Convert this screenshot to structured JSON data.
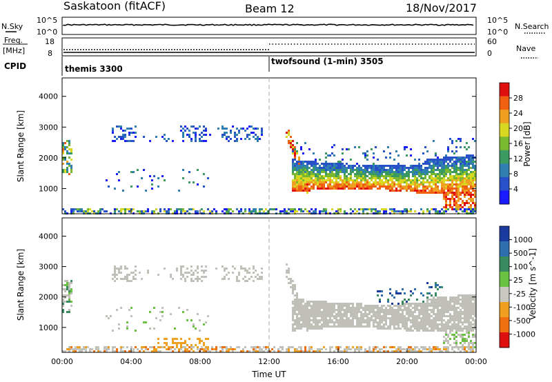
{
  "header": {
    "station": "Saskatoon (fitACF)",
    "beam": "Beam 12",
    "date": "18/Nov/2017"
  },
  "top_panel": {
    "left_label": "N.Sky",
    "right_label": "N.Search",
    "left_ticks": [
      "10^5",
      "10^0"
    ],
    "right_ticks": [
      "10^5",
      "10^0"
    ]
  },
  "freq_panel": {
    "left_label_1": "Freq.",
    "left_label_2": "[MHz]",
    "right_label": "Nave",
    "left_ticks": [
      "18",
      "8"
    ],
    "right_ticks": [
      "60",
      "0"
    ]
  },
  "cpid": {
    "label": "CPID",
    "segments": [
      {
        "name": "themis 3300",
        "start_hour": 0,
        "end_hour": 12
      },
      {
        "name": "twofsound (1-min) 3505",
        "start_hour": 12,
        "end_hour": 24
      }
    ]
  },
  "chart_data": [
    {
      "type": "heatmap",
      "title": "",
      "quantity": "Power",
      "xlabel": "Time UT",
      "ylabel": "Slant Range [km]",
      "colorbar_label": "Power [dB]",
      "xlim": [
        "00:00",
        "24:00"
      ],
      "ylim": [
        180,
        4600
      ],
      "yticks": [
        1000,
        2000,
        3000,
        4000
      ],
      "colorbar_ticks": [
        4,
        8,
        12,
        16,
        20,
        24,
        28
      ],
      "colorbar_range": [
        0,
        32
      ],
      "colors": [
        "#1a1aff",
        "#2850c8",
        "#2f7fb0",
        "#3a9a60",
        "#7ab830",
        "#d8d820",
        "#f0a020",
        "#f06010",
        "#e01010"
      ],
      "regions": [
        {
          "t": [
            2.6,
            11.5
          ],
          "r": [
            2650,
            3050
          ],
          "level": 6,
          "desc": "sparse echoes"
        },
        {
          "t": [
            13.3,
            24
          ],
          "r": [
            900,
            2000
          ],
          "level": 22,
          "desc": "main band"
        },
        {
          "t": [
            13.3,
            24
          ],
          "r": [
            850,
            1150
          ],
          "level": 27,
          "desc": "bottom edge"
        },
        {
          "t": [
            0,
            24
          ],
          "r": [
            180,
            450
          ],
          "level": 10,
          "desc": "near range"
        }
      ]
    },
    {
      "type": "heatmap",
      "title": "",
      "quantity": "Velocity",
      "xlabel": "Time UT",
      "ylabel": "Slant Range [km]",
      "colorbar_label": "Velocity [m s^-1]",
      "xlim": [
        "00:00",
        "24:00"
      ],
      "ylim": [
        180,
        4600
      ],
      "yticks": [
        1000,
        2000,
        3000,
        4000
      ],
      "xticks": [
        "00:00",
        "04:00",
        "08:00",
        "12:00",
        "16:00",
        "20:00",
        "00:00"
      ],
      "colorbar_ticks": [
        1000,
        500,
        100,
        25,
        -25,
        -100,
        -500,
        -1000
      ],
      "colors": [
        "#1a3aa0",
        "#2f6fb0",
        "#3a8a60",
        "#6ac040",
        "#c8c8c0",
        "#f0a020",
        "#f07010",
        "#e01010"
      ],
      "ground_scatter_color": "#c0c0b8"
    }
  ]
}
